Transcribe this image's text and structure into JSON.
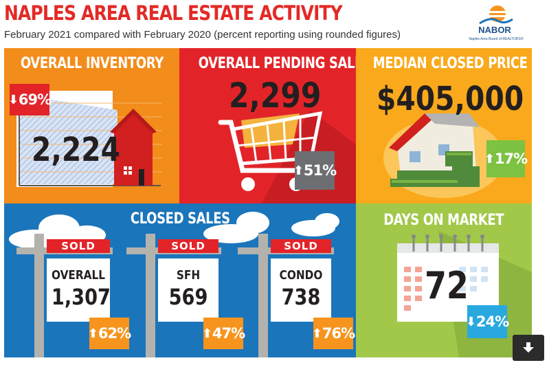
{
  "header": {
    "title": "NAPLES AREA REAL ESTATE ACTIVITY",
    "subtitle": "February 2021 compared with February 2020 (percent reporting using rounded figures)"
  },
  "logo": {
    "name": "NABOR",
    "tagline": "Naples Area Board of REALTORS®"
  },
  "inventory": {
    "title": "OVERALL INVENTORY",
    "value": "2,224",
    "change": "69%",
    "direction": "down"
  },
  "pending": {
    "title": "OVERALL PENDING SALES",
    "value": "2,299",
    "change": "51%",
    "direction": "up"
  },
  "median": {
    "title": "MEDIAN CLOSED PRICE",
    "value": "$405,000",
    "change": "17%",
    "direction": "up"
  },
  "closed_sales": {
    "title": "CLOSED SALES",
    "sold_label": "SOLD",
    "items": [
      {
        "label": "OVERALL",
        "value": "1,307",
        "change": "62%",
        "direction": "up"
      },
      {
        "label": "SFH",
        "value": "569",
        "change": "47%",
        "direction": "up"
      },
      {
        "label": "CONDO",
        "value": "738",
        "change": "76%",
        "direction": "up"
      }
    ]
  },
  "days": {
    "title": "DAYS ON MARKET",
    "value": "72",
    "change": "24%",
    "direction": "down"
  },
  "icons": {
    "up": "arrow-up-icon",
    "down": "arrow-down-icon",
    "download": "download-icon"
  },
  "colors": {
    "title_red": "#e32a26",
    "inventory_orange": "#f28c1a",
    "pending_red": "#e22429",
    "median_yellow": "#f9a91b",
    "closed_blue": "#1b75bb",
    "days_green": "#a2c84a",
    "badge_green": "#7dc242",
    "badge_orange": "#f7941d",
    "badge_blue": "#29a8e0"
  }
}
